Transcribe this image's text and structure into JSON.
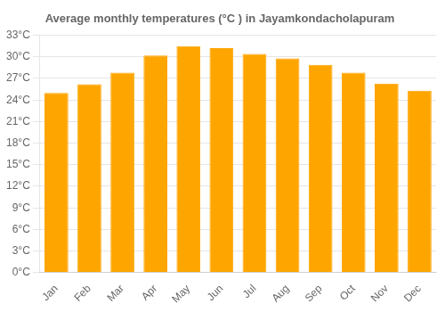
{
  "chart_data": {
    "type": "bar",
    "title": "Average monthly temperatures (°C ) in Jayamkondacholapuram",
    "categories": [
      "Jan",
      "Feb",
      "Mar",
      "Apr",
      "May",
      "Jun",
      "Jul",
      "Aug",
      "Sep",
      "Oct",
      "Nov",
      "Dec"
    ],
    "values": [
      25.0,
      26.2,
      27.8,
      30.2,
      31.5,
      31.2,
      30.4,
      29.8,
      28.9,
      27.8,
      26.3,
      25.3
    ],
    "color": "#FFA500",
    "ylim": [
      0,
      33
    ],
    "yticks": [
      {
        "value": 0,
        "label": "0°C"
      },
      {
        "value": 3,
        "label": "3°C"
      },
      {
        "value": 6,
        "label": "6°C"
      },
      {
        "value": 9,
        "label": "9°C"
      },
      {
        "value": 12,
        "label": "12°C"
      },
      {
        "value": 15,
        "label": "15°C"
      },
      {
        "value": 18,
        "label": "18°C"
      },
      {
        "value": 21,
        "label": "21°C"
      },
      {
        "value": 24,
        "label": "24°C"
      },
      {
        "value": 27,
        "label": "27°C"
      },
      {
        "value": 30,
        "label": "30°C"
      },
      {
        "value": 33,
        "label": "33°C"
      }
    ],
    "grid": true
  }
}
